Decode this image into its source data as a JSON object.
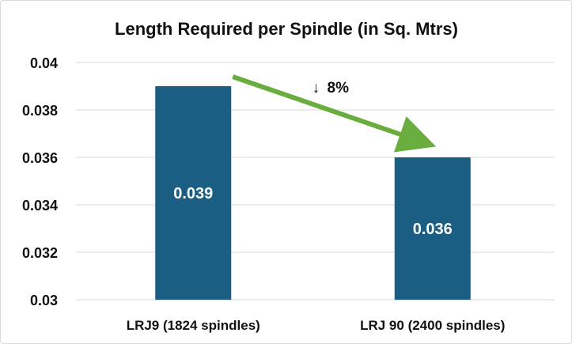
{
  "chart_data": {
    "type": "bar",
    "title": "Length Required per Spindle (in Sq. Mtrs)",
    "categories": [
      "LRJ9 (1824 spindles)",
      "LRJ 90 (2400 spindles)"
    ],
    "values": [
      0.039,
      0.036
    ],
    "data_labels": [
      "0.039",
      "0.036"
    ],
    "ylim": [
      0.03,
      0.04
    ],
    "yticks": [
      0.03,
      0.032,
      0.034,
      0.036,
      0.038,
      0.04
    ],
    "ytick_labels": [
      "0.03",
      "0.032",
      "0.034",
      "0.036",
      "0.038",
      "0.04"
    ],
    "xlabel": "",
    "ylabel": "",
    "grid": true,
    "legend": "none",
    "annotation": {
      "text": "8%",
      "arrow_symbol": "↓",
      "from_category": "LRJ9 (1824 spindles)",
      "to_category": "LRJ 90 (2400 spindles)"
    },
    "colors": {
      "bar": "#1b5e84",
      "grid": "#d9d9d9",
      "arrow": "#6aad3f"
    }
  }
}
